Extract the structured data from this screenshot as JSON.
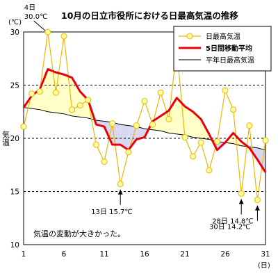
{
  "chart_data": {
    "type": "line",
    "title": "10月の日立市役所における日最高気温の推移",
    "ylabel": "気温",
    "yunit": "(℃)",
    "xunit": "(日)",
    "xlim": [
      1,
      31
    ],
    "ylim": [
      10,
      30
    ],
    "x_ticks": [
      1,
      6,
      11,
      16,
      21,
      26,
      31
    ],
    "y_ticks": [
      10,
      15,
      20,
      25,
      30
    ],
    "grid": "horizontal dashed",
    "legend_position": "top-right",
    "x": [
      1,
      2,
      3,
      4,
      5,
      6,
      7,
      8,
      9,
      10,
      11,
      12,
      13,
      14,
      15,
      16,
      17,
      18,
      19,
      20,
      21,
      22,
      23,
      24,
      25,
      26,
      27,
      28,
      29,
      30,
      31
    ],
    "series": [
      {
        "name": "日最高気温",
        "color": "#f0b400",
        "marker_fill": "#ffffa0",
        "values": [
          21.1,
          24.2,
          24.4,
          30.0,
          24.3,
          29.6,
          22.7,
          23.1,
          23.6,
          19.4,
          17.8,
          21.4,
          15.7,
          18.7,
          21.2,
          23.5,
          21.3,
          24.3,
          21.8,
          28.4,
          20.1,
          18.3,
          19.6,
          17.0,
          19.7,
          24.5,
          22.7,
          14.8,
          21.2,
          14.2,
          19.8
        ]
      },
      {
        "name": "5日間移動平均",
        "color": "#e8000b",
        "x_start": 1,
        "values": [
          22.9,
          24.0,
          24.6,
          26.5,
          26.2,
          26.0,
          25.7,
          24.4,
          23.6,
          21.3,
          21.1,
          19.4,
          19.4,
          18.9,
          19.9,
          20.1,
          21.6,
          22.1,
          22.6,
          23.8,
          23.0,
          22.5,
          21.8,
          20.4,
          18.9,
          19.6,
          20.5,
          19.7,
          19.1,
          18.0,
          16.8
        ]
      },
      {
        "name": "平年日最高気温",
        "color": "#000000",
        "values": [
          22.9,
          22.8,
          22.7,
          22.5,
          22.4,
          22.3,
          22.1,
          22.0,
          21.9,
          21.7,
          21.6,
          21.5,
          21.3,
          21.2,
          21.1,
          20.9,
          20.8,
          20.7,
          20.5,
          20.4,
          20.3,
          20.1,
          20.0,
          19.9,
          19.7,
          19.6,
          19.5,
          19.3,
          19.2,
          19.1,
          18.9
        ]
      }
    ],
    "fill_above_normal": "#ffffc8",
    "fill_below_normal": "#d8d8f0",
    "annotations": [
      {
        "x": 4,
        "y": 30.0,
        "label_line1": "4日",
        "label_line2": "30.0℃"
      },
      {
        "x": 13,
        "y": 15.7,
        "label": "13日 15.7℃"
      },
      {
        "x": 28,
        "y": 14.8,
        "label": "28日 14.8℃"
      },
      {
        "x": 30,
        "y": 14.2,
        "label": "30日 14.2℃"
      }
    ],
    "note": "気温の変動が大きかった。"
  }
}
